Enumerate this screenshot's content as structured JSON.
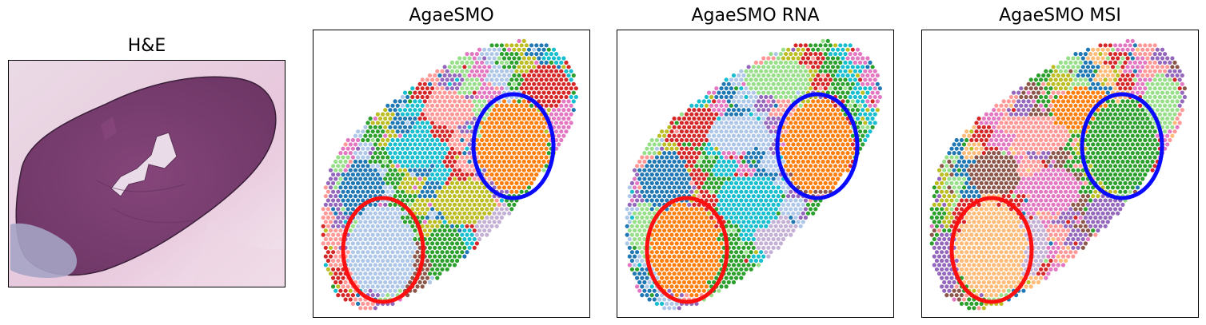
{
  "panels": [
    {
      "title": "H&E"
    },
    {
      "title": "AgaeSMO"
    },
    {
      "title": "AgaeSMO RNA"
    },
    {
      "title": "AgaeSMO MSI"
    }
  ],
  "colors": {
    "tissue_dark": "#7a3f72",
    "tissue_mid": "#8e4f84",
    "tissue_background": "#e8cfe0",
    "white_matter": "#a7a4c4",
    "blue_circle": "#0a0aff",
    "red_circle": "#ff1010",
    "palette": [
      "#ff7f0e",
      "#1f77b4",
      "#2ca02c",
      "#d62728",
      "#9467bd",
      "#8c564b",
      "#e377c2",
      "#bcbd22",
      "#17becf",
      "#aec7e8",
      "#98df8a",
      "#ff9896",
      "#c5b0d5",
      "#ffbb78",
      "#c49c94",
      "#a040ff"
    ]
  }
}
